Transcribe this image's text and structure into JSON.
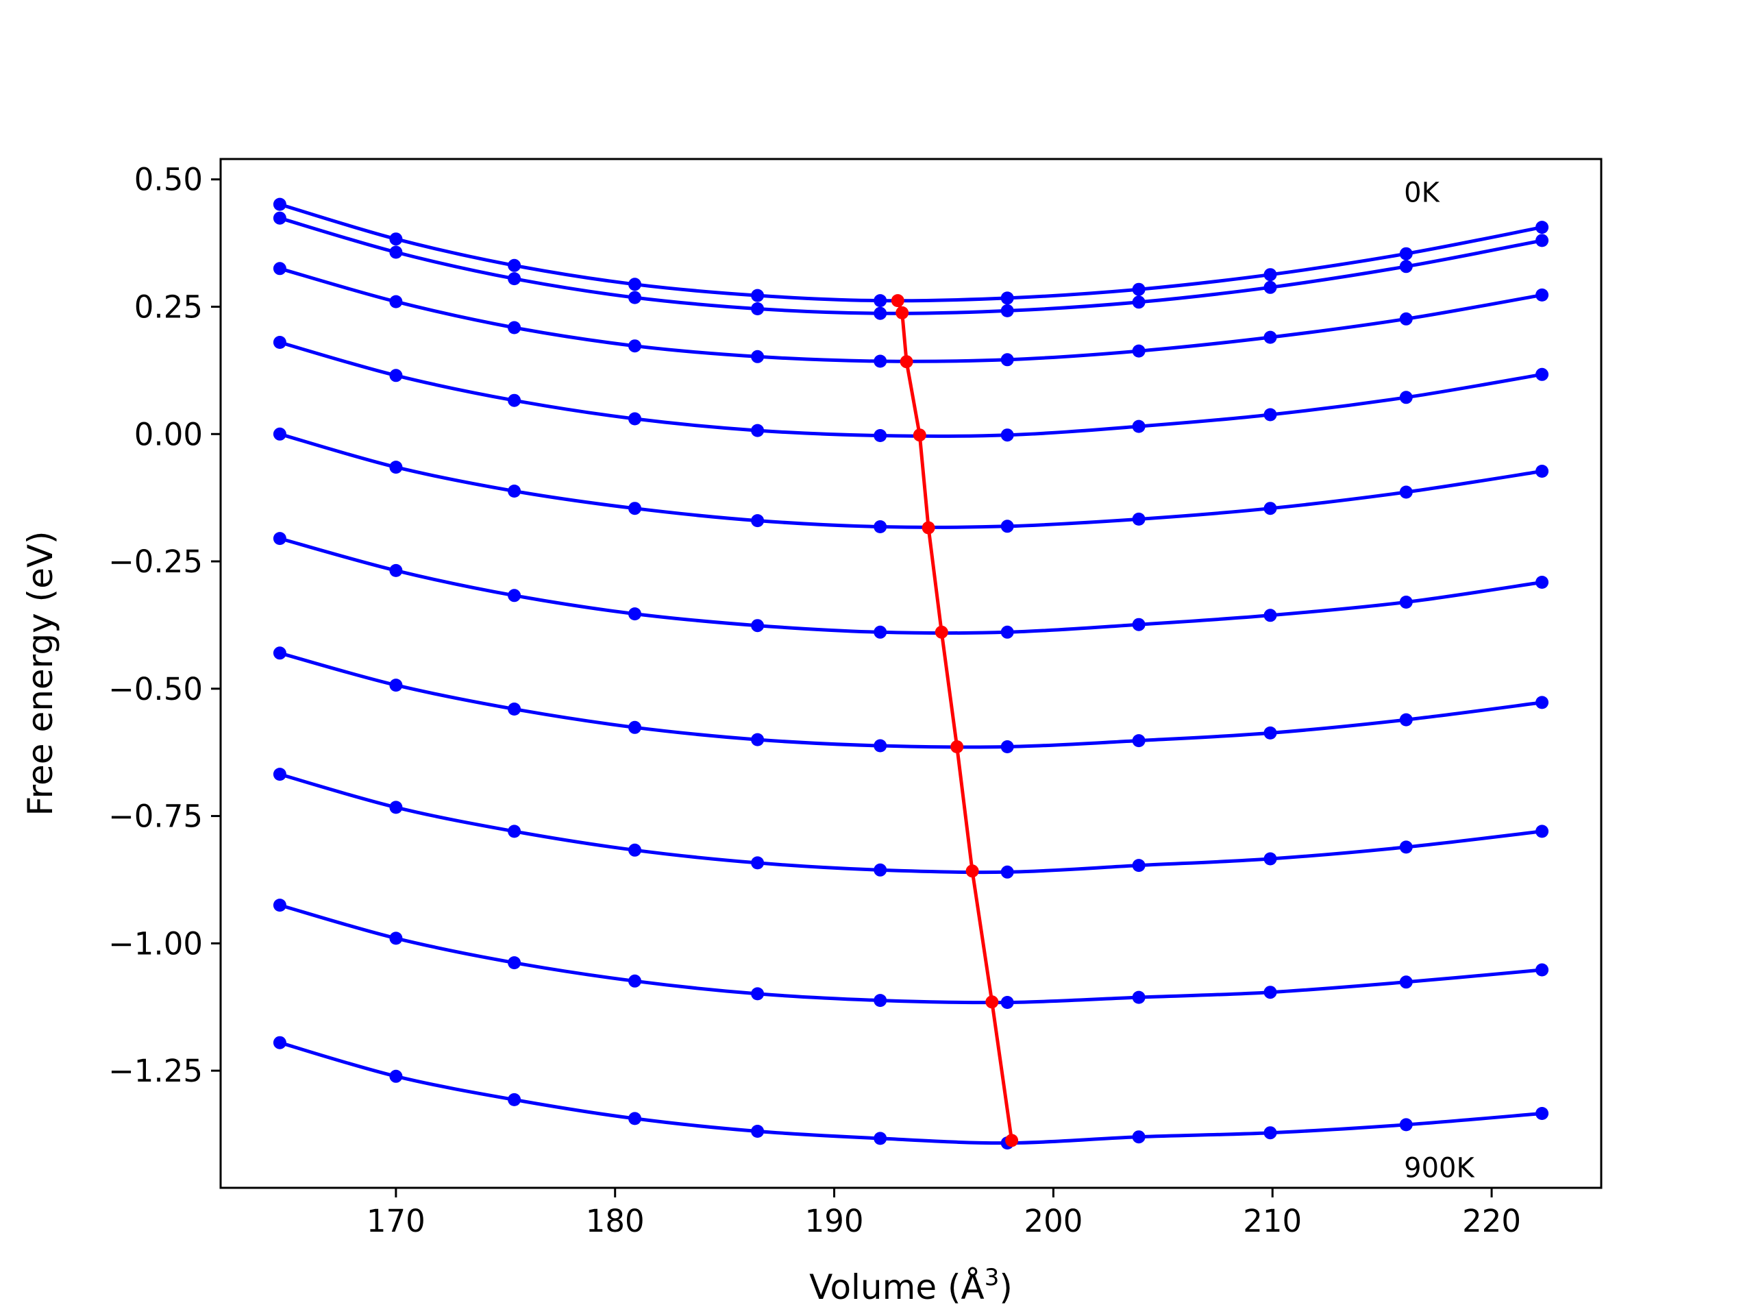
{
  "chart_data": {
    "type": "line",
    "title": "",
    "xlabel": "Volume (",
    "xlabel_unit": "Å",
    "xlabel_sup": "3",
    "xlabel_end": ")",
    "ylabel": "Free energy (eV)",
    "xlim": [
      162,
      225
    ],
    "ylim": [
      -1.48,
      0.54
    ],
    "xticks": [
      170,
      180,
      190,
      200,
      210,
      220
    ],
    "xtick_labels": [
      "170",
      "180",
      "190",
      "200",
      "210",
      "220"
    ],
    "yticks": [
      0.5,
      0.25,
      0.0,
      -0.25,
      -0.5,
      -0.75,
      -1.0,
      -1.25
    ],
    "ytick_labels": [
      "0.50",
      "0.25",
      "0.00",
      "−0.25",
      "−0.50",
      "−0.75",
      "−1.00",
      "−1.25"
    ],
    "grid": false,
    "legend": "none",
    "annotations": [
      {
        "text": "0K",
        "x": 216,
        "y": 0.475
      },
      {
        "text": "900K",
        "x": 216,
        "y": -1.44
      }
    ],
    "colors": {
      "curves": "#0000ff",
      "minimum_line": "#ff0000"
    },
    "x": [
      164.7,
      170.0,
      175.4,
      180.9,
      186.5,
      192.1,
      197.9,
      203.9,
      209.9,
      216.1,
      222.3
    ],
    "series": [
      {
        "values": [
          0.451,
          0.383,
          0.331,
          0.294,
          0.272,
          0.262,
          0.267,
          0.284,
          0.313,
          0.354,
          0.406
        ]
      },
      {
        "values": [
          0.424,
          0.357,
          0.305,
          0.268,
          0.246,
          0.237,
          0.242,
          0.259,
          0.288,
          0.329,
          0.38
        ]
      },
      {
        "values": [
          0.325,
          0.26,
          0.209,
          0.173,
          0.152,
          0.143,
          0.146,
          0.163,
          0.19,
          0.226,
          0.273
        ]
      },
      {
        "values": [
          0.18,
          0.115,
          0.066,
          0.03,
          0.007,
          -0.003,
          -0.002,
          0.015,
          0.038,
          0.072,
          0.117
        ]
      },
      {
        "values": [
          0.0,
          -0.065,
          -0.112,
          -0.146,
          -0.17,
          -0.182,
          -0.181,
          -0.167,
          -0.146,
          -0.114,
          -0.073
        ]
      },
      {
        "values": [
          -0.205,
          -0.268,
          -0.317,
          -0.353,
          -0.376,
          -0.389,
          -0.389,
          -0.374,
          -0.356,
          -0.33,
          -0.291
        ]
      },
      {
        "values": [
          -0.43,
          -0.493,
          -0.54,
          -0.576,
          -0.6,
          -0.612,
          -0.614,
          -0.602,
          -0.587,
          -0.561,
          -0.527
        ]
      },
      {
        "values": [
          -0.668,
          -0.733,
          -0.78,
          -0.817,
          -0.842,
          -0.856,
          -0.86,
          -0.847,
          -0.834,
          -0.811,
          -0.78
        ]
      },
      {
        "values": [
          -0.925,
          -0.99,
          -1.038,
          -1.074,
          -1.099,
          -1.112,
          -1.116,
          -1.106,
          -1.096,
          -1.076,
          -1.052
        ]
      },
      {
        "values": [
          -1.195,
          -1.261,
          -1.307,
          -1.344,
          -1.369,
          -1.383,
          -1.392,
          -1.38,
          -1.372,
          -1.356,
          -1.334
        ]
      }
    ],
    "minimum_line": {
      "x": [
        192.9,
        193.1,
        193.3,
        193.9,
        194.3,
        194.9,
        195.6,
        196.3,
        197.2,
        198.1
      ],
      "y": [
        0.262,
        0.238,
        0.142,
        -0.002,
        -0.184,
        -0.389,
        -0.614,
        -0.858,
        -1.115,
        -1.387
      ]
    }
  }
}
